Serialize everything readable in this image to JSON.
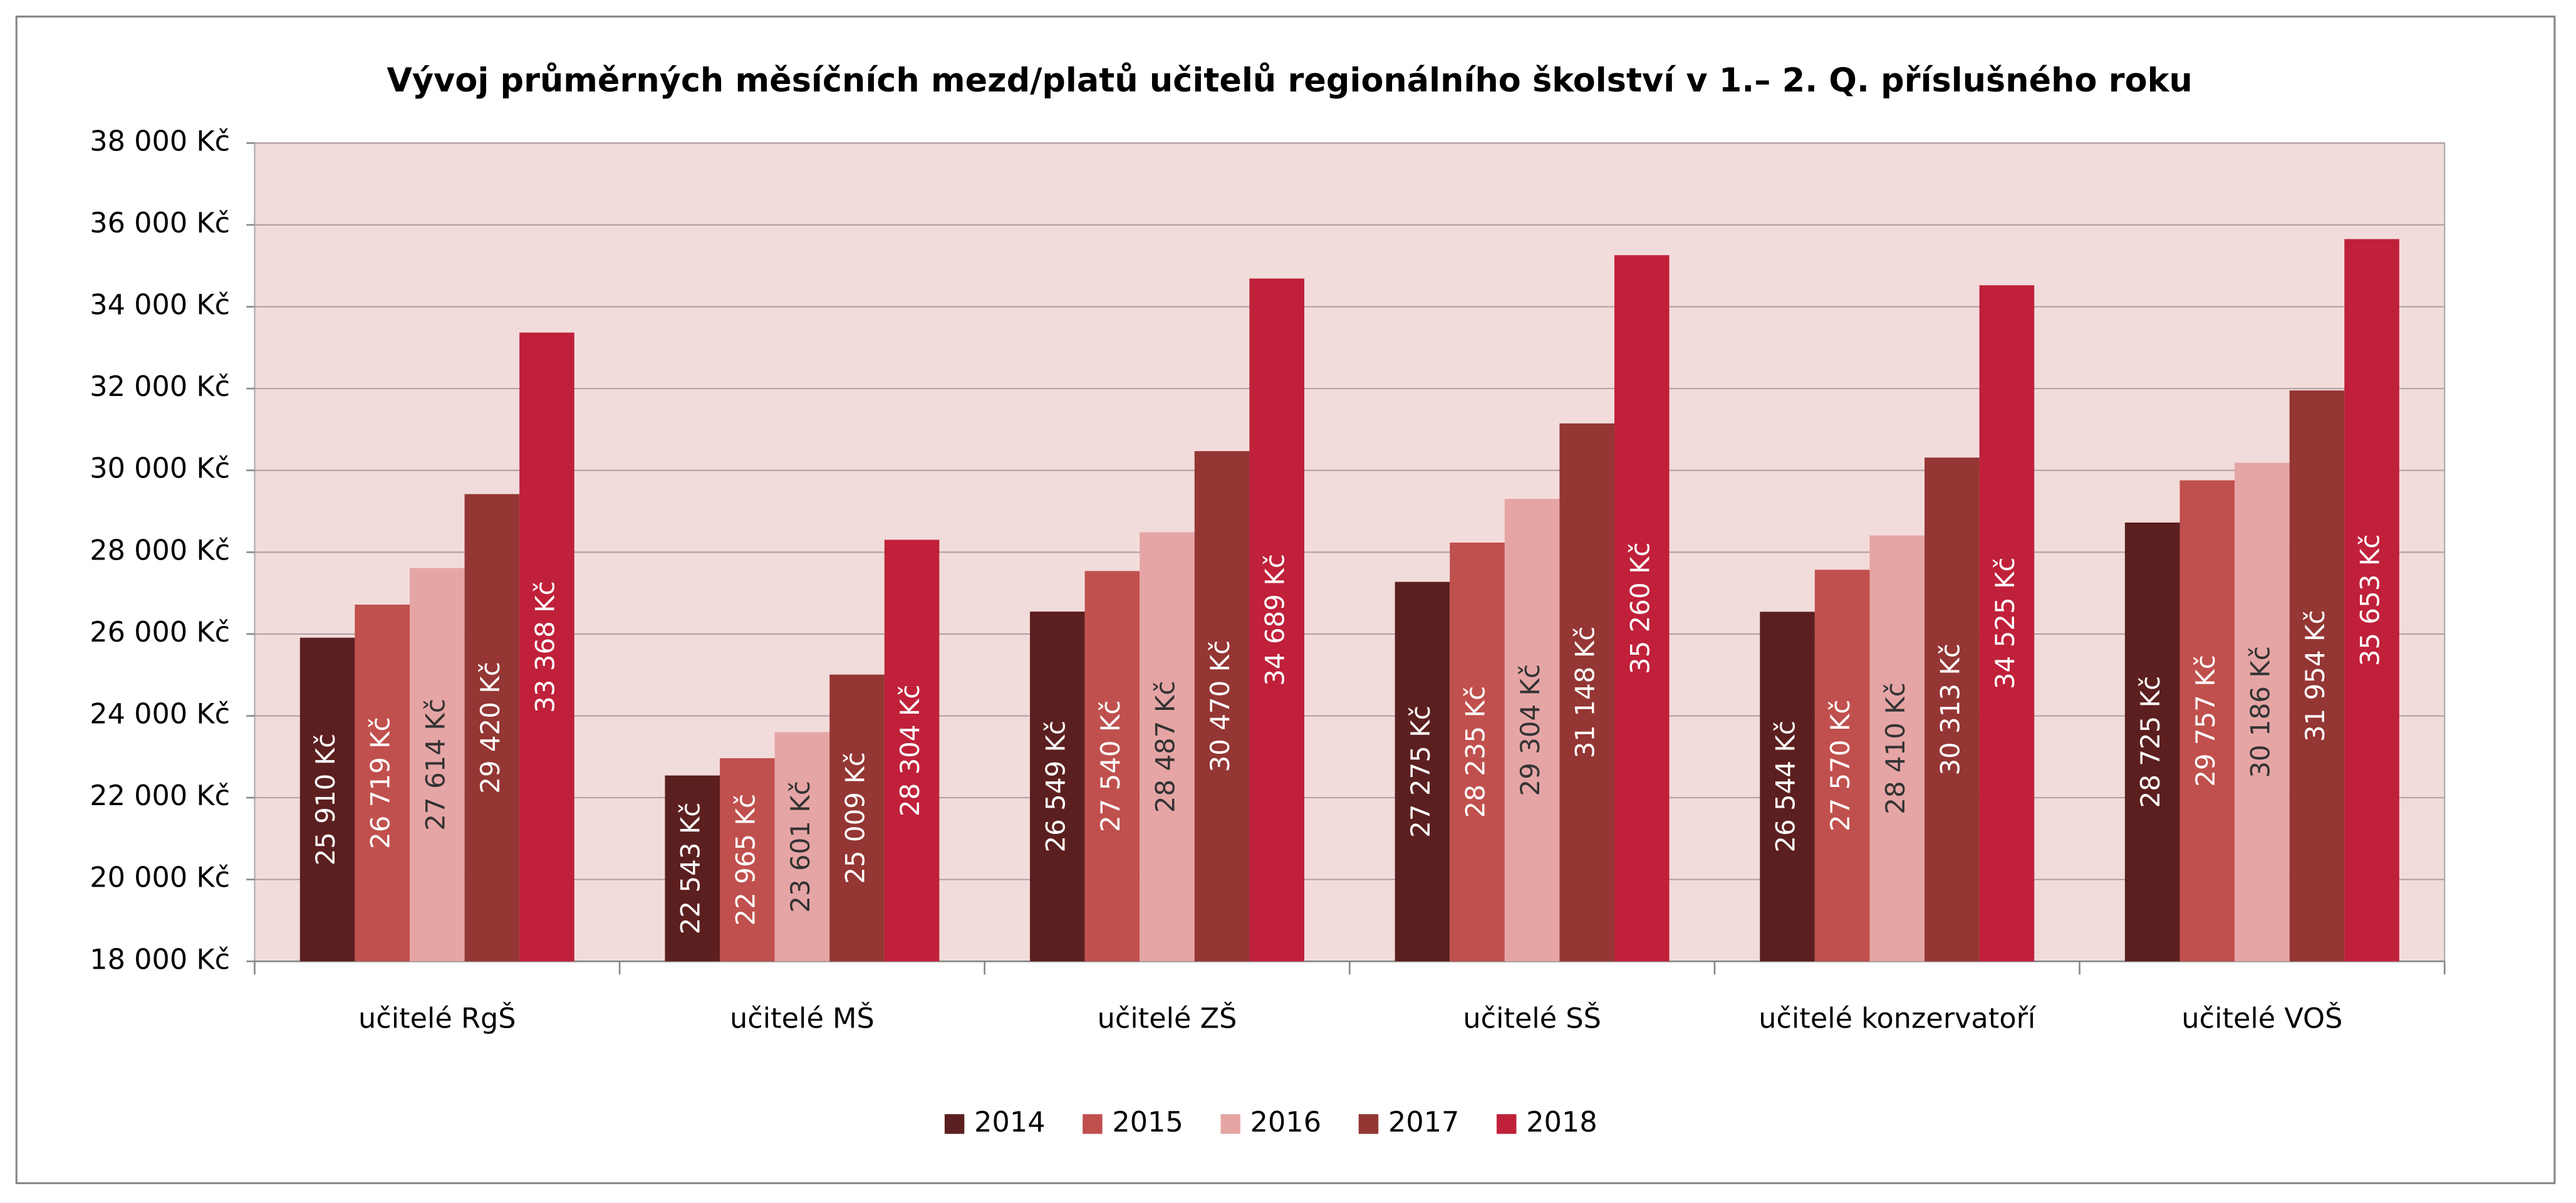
{
  "chart_data": {
    "type": "bar",
    "title": "Vývoj průměrných měsíčních mezd/platů učitelů  regionálního školství v 1.– 2.  Q. příslušného roku",
    "categories": [
      "učitelé RgŠ",
      "učitelé MŠ",
      "učitelé ZŠ",
      "učitelé SŠ",
      "učitelé konzervatoří",
      "učitelé VOŠ"
    ],
    "series": [
      {
        "name": "2014",
        "color": "#5c1f1f",
        "values": [
          25910,
          22543,
          26549,
          27275,
          26544,
          28725
        ],
        "value_labels": [
          "25 910 Kč",
          "22 543 Kč",
          "26 549 Kč",
          "27 275 Kč",
          "26 544 Kč",
          "28 725 Kč"
        ]
      },
      {
        "name": "2015",
        "color": "#c0504d",
        "values": [
          26719,
          22965,
          27540,
          28235,
          27570,
          29757
        ],
        "value_labels": [
          "26 719 Kč",
          "22 965 Kč",
          "27 540 Kč",
          "28 235 Kč",
          "27 570 Kč",
          "29 757 Kč"
        ]
      },
      {
        "name": "2016",
        "color": "#e6a5a5",
        "values": [
          27614,
          23601,
          28487,
          29304,
          28410,
          30186
        ],
        "value_labels": [
          "27 614 Kč",
          "23 601 Kč",
          "28 487 Kč",
          "29 304 Kč",
          "28 410 Kč",
          "30 186 Kč"
        ]
      },
      {
        "name": "2017",
        "color": "#943634",
        "values": [
          29420,
          25009,
          30470,
          31148,
          30313,
          31954
        ],
        "value_labels": [
          "29 420 Kč",
          "25 009 Kč",
          "30 470 Kč",
          "31 148 Kč",
          "30 313 Kč",
          "31 954 Kč"
        ]
      },
      {
        "name": "2018",
        "color": "#c0203a",
        "values": [
          33368,
          28304,
          34689,
          35260,
          34525,
          35653
        ],
        "value_labels": [
          "33 368 Kč",
          "28 304 Kč",
          "34 689 Kč",
          "35 260 Kč",
          "34 525 Kč",
          "35 653 Kč"
        ]
      }
    ],
    "ylim": [
      18000,
      38000
    ],
    "yticks": [
      {
        "value": 18000,
        "label": "18 000 Kč"
      },
      {
        "value": 20000,
        "label": "20 000 Kč"
      },
      {
        "value": 22000,
        "label": "22 000 Kč"
      },
      {
        "value": 24000,
        "label": "24 000 Kč"
      },
      {
        "value": 26000,
        "label": "26 000 Kč"
      },
      {
        "value": 28000,
        "label": "28 000 Kč"
      },
      {
        "value": 30000,
        "label": "30 000 Kč"
      },
      {
        "value": 32000,
        "label": "32 000 Kč"
      },
      {
        "value": 34000,
        "label": "34 000 Kč"
      },
      {
        "value": 36000,
        "label": "36 000 Kč"
      },
      {
        "value": 38000,
        "label": "38 000 Kč"
      }
    ],
    "grid": true,
    "legend": "bottom"
  }
}
